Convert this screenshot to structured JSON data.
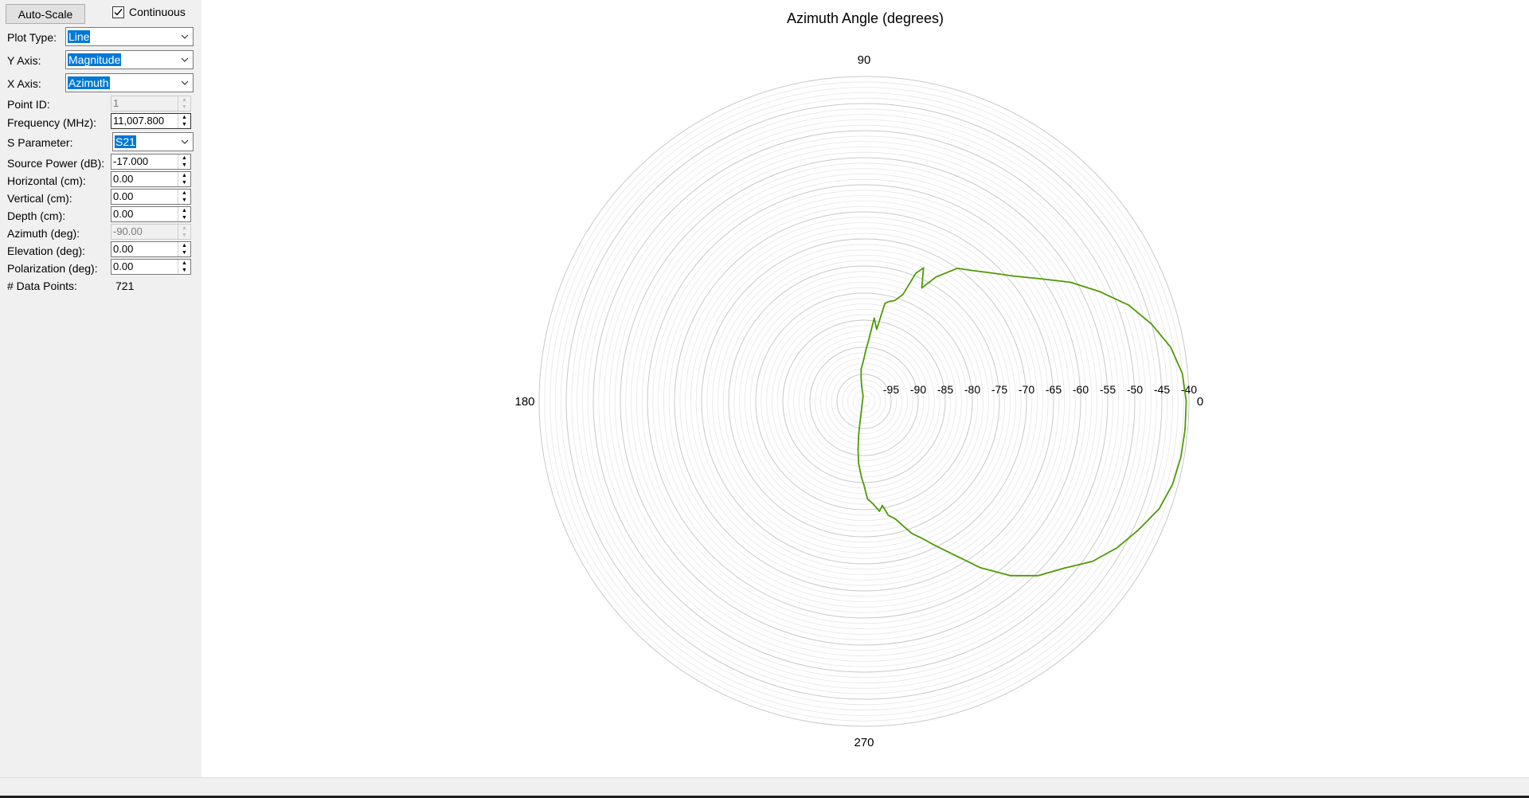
{
  "controls": {
    "autoscale_label": "Auto-Scale",
    "continuous_label": "Continuous",
    "continuous_checked": true,
    "plot_type_label": "Plot Type:",
    "plot_type_value": "Line",
    "y_axis_label": "Y Axis:",
    "y_axis_value": "Magnitude",
    "x_axis_label": "X Axis:",
    "x_axis_value": "Azimuth",
    "point_id_label": "Point ID:",
    "point_id_value": "1",
    "frequency_label": "Frequency (MHz):",
    "frequency_value": "11,007.800",
    "s_param_label": "S Parameter:",
    "s_param_value": "S21",
    "source_power_label": "Source Power (dB):",
    "source_power_value": "-17.000",
    "horizontal_label": "Horizontal (cm):",
    "horizontal_value": "0.00",
    "vertical_label": "Vertical (cm):",
    "vertical_value": "0.00",
    "depth_label": "Depth (cm):",
    "depth_value": "0.00",
    "azimuth_label": "Azimuth (deg):",
    "azimuth_value": "-90.00",
    "elevation_label": "Elevation (deg):",
    "elevation_value": "0.00",
    "polarization_label": "Polarization (deg):",
    "polarization_value": "0.00",
    "data_points_label": "# Data Points:",
    "data_points_value": "721"
  },
  "colors": {
    "trace": "#4e9a06",
    "selection": "#0078d7",
    "grid_major": "#c8c8c8",
    "grid_minor": "#e6e6e6"
  },
  "chart_data": {
    "type": "polar-line",
    "title": "Azimuth Angle (degrees)",
    "angle_labels": [
      "0",
      "90",
      "180",
      "270"
    ],
    "radial_tick_labels": [
      "-95",
      "-90",
      "-85",
      "-80",
      "-75",
      "-70",
      "-65",
      "-60",
      "-55",
      "-50",
      "-45",
      "-40"
    ],
    "radial_range": [
      -100,
      -40
    ],
    "grid": true,
    "series": [
      {
        "angles_deg": [
          0,
          5,
          10,
          15,
          20,
          25,
          30,
          35,
          40,
          45,
          50,
          55,
          60,
          63,
          66,
          68,
          70,
          73,
          76,
          78,
          80,
          83,
          86,
          88,
          90,
          92,
          95,
          97,
          98,
          99,
          100,
          260,
          261,
          262,
          263,
          265,
          268,
          270,
          272,
          275,
          278,
          280,
          282,
          285,
          288,
          290,
          293,
          296,
          300,
          305,
          310,
          315,
          320,
          325,
          330,
          335,
          340,
          345,
          350,
          355,
          360
        ],
        "values_db": [
          -40.5,
          -41.0,
          -42.5,
          -45.0,
          -48.0,
          -52.0,
          -56.0,
          -60.5,
          -64.0,
          -66.5,
          -68.5,
          -70.0,
          -73.5,
          -76.5,
          -73.0,
          -74.5,
          -79.0,
          -80.5,
          -81.0,
          -81.5,
          -86.5,
          -84.5,
          -89.0,
          -90.5,
          -92.0,
          -93.0,
          -94.0,
          -95.5,
          -96.5,
          -97.5,
          -99.0,
          -95.0,
          -93.5,
          -92.5,
          -91.0,
          -88.5,
          -86.0,
          -84.5,
          -82.0,
          -81.0,
          -79.5,
          -80.5,
          -78.5,
          -77.5,
          -75.5,
          -74.0,
          -72.5,
          -70.5,
          -67.5,
          -62.5,
          -58.0,
          -54.5,
          -52.0,
          -48.5,
          -46.0,
          -44.0,
          -42.0,
          -41.0,
          -40.6,
          -40.5,
          -40.5
        ]
      }
    ]
  }
}
